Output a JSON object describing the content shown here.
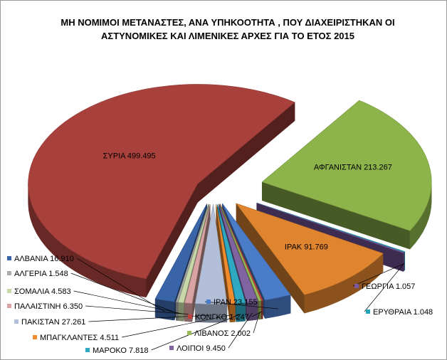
{
  "chart_data": {
    "type": "pie",
    "title_line1": "ΜΗ ΝΟΜΙΜΟΙ ΜΕΤΑΝΑΣΤΕΣ, ΑΝΑ ΥΠΗΚΟΟΤΗΤΑ , ΠΟΥ ΔΙΑΧΕΙΡΙΣΤΗΚΑΝ ΟΙ",
    "title_line2": "ΑΣΤΥΝΟΜΙΚΕΣ ΚΑΙ ΛΙΜΕΝΙΚΕΣ ΑΡΧΕΣ ΓΙΑ ΤΟ ΕΤΟΣ 2015",
    "slices": [
      {
        "name": "ΑΦΓΑΝΙΣΤΑΝ",
        "value": 213267,
        "label": "ΑΦΓΑΝΙΣΤΑΝ 213.267",
        "color": "#8db44a",
        "legend": false
      },
      {
        "name": "ΕΡΥΘΡΑΙΑ",
        "value": 1048,
        "label": "ΕΡΥΘΡΑΙΑ 1.048",
        "color": "#24a4b8",
        "legend": true
      },
      {
        "name": "ΓΕΩΡΓΙΑ",
        "value": 1057,
        "label": "ΓΕΩΡΓΙΑ 1.057",
        "color": "#7a58a0",
        "legend": true
      },
      {
        "name": "ΙΡΑΚ",
        "value": 91769,
        "label": "ΙΡΑΚ 91.769",
        "color": "#e0852f",
        "legend": false
      },
      {
        "name": "ΙΡΑΝ",
        "value": 23155,
        "label": "ΙΡΑΝ 23.155",
        "color": "#4a7cc8",
        "legend": true
      },
      {
        "name": "ΚΟΝΓΚΟ",
        "value": 1247,
        "label": "ΚΟΝΓΚΟ 1.247",
        "color": "#c0413c",
        "legend": true
      },
      {
        "name": "ΛΙΒΑΝΟΣ",
        "value": 2002,
        "label": "ΛΙΒΑΝΟΣ 2.002",
        "color": "#9bbb59",
        "legend": true
      },
      {
        "name": "ΛΟΙΠΟΙ",
        "value": 9450,
        "label": "ΛΟΙΠΟΙ 9.450",
        "color": "#8064a2",
        "legend": true
      },
      {
        "name": "ΜΑΡΟΚΟ",
        "value": 7818,
        "label": "ΜΑΡΟΚΟ 7.818",
        "color": "#2fa8c2",
        "legend": true
      },
      {
        "name": "ΜΠΑΓΚΛΑΝΤΕΣ",
        "value": 4511,
        "label": "ΜΠΑΓΚΛΑΝΤΕΣ 4.511",
        "color": "#f08c2e",
        "legend": true
      },
      {
        "name": "ΠΑΚΙΣΤΑΝ",
        "value": 27261,
        "label": "ΠΑΚΙΣΤΑΝ 27.261",
        "color": "#b3bfd8",
        "legend": true
      },
      {
        "name": "ΠΑΛΑΙΣΤΙΝΗ",
        "value": 6350,
        "label": "ΠΑΛΑΙΣΤΙΝΗ  6.350",
        "color": "#d9a3a3",
        "legend": true
      },
      {
        "name": "ΣΟΜΑΛΙΑ",
        "value": 4583,
        "label": "ΣΟΜΑΛΙΑ 4.583",
        "color": "#c8d8a8",
        "legend": true
      },
      {
        "name": "ΑΛΓΕΡΙΑ",
        "value": 1548,
        "label": "ΑΛΓΕΡΙΑ 1.548",
        "color": "#aaaaaa",
        "legend": true
      },
      {
        "name": "ΑΛΒΑΝΙΑ",
        "value": 16910,
        "label": "ΑΛΒΑΝΙΑ 16.910",
        "color": "#3a64a8",
        "legend": true
      },
      {
        "name": "ΣΥΡΙΑ",
        "value": 499495,
        "label": "ΣΥΡΙΑ 499.495",
        "color": "#a8403c",
        "legend": false
      }
    ]
  }
}
